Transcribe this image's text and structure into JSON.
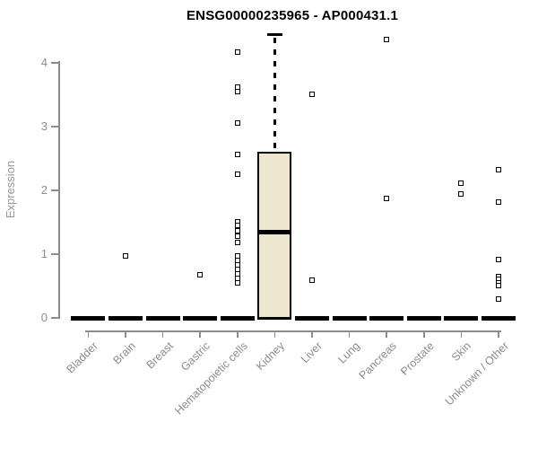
{
  "chart_data": {
    "type": "boxplot",
    "title": "ENSG00000235965 - AP000431.1",
    "ylabel": "Expression",
    "xlabel": "",
    "yticks": [
      0,
      1,
      2,
      3,
      4
    ],
    "ylim": [
      0,
      4.5
    ],
    "grid": false,
    "legend": "none",
    "colors": {
      "box_fill": "#ece7cd",
      "box_border": "#000000",
      "median": "#000000",
      "outlier": "#000000",
      "axis": "#8c8c8c",
      "tick_text": "#8c8c8c",
      "title_text": "#000000",
      "background": "#ffffff"
    },
    "categories": [
      "Bladder",
      "Brain",
      "Breast",
      "Gastric",
      "Hematopoietic cells",
      "Kidney",
      "Liver",
      "Lung",
      "Pancreas",
      "Prostate",
      "Skin",
      "Unknown / Other"
    ],
    "boxes": [
      {
        "category": "Bladder",
        "median": 0,
        "q1": 0,
        "q3": 0,
        "whisker_low": 0,
        "whisker_high": 0,
        "outliers": []
      },
      {
        "category": "Brain",
        "median": 0,
        "q1": 0,
        "q3": 0,
        "whisker_low": 0,
        "whisker_high": 0,
        "outliers": [
          0.97
        ]
      },
      {
        "category": "Breast",
        "median": 0,
        "q1": 0,
        "q3": 0,
        "whisker_low": 0,
        "whisker_high": 0,
        "outliers": []
      },
      {
        "category": "Gastric",
        "median": 0,
        "q1": 0,
        "q3": 0,
        "whisker_low": 0,
        "whisker_high": 0,
        "outliers": [
          0.67
        ]
      },
      {
        "category": "Hematopoietic cells",
        "median": 0,
        "q1": 0,
        "q3": 0,
        "whisker_low": 0,
        "whisker_high": 0,
        "outliers": [
          4.17,
          3.62,
          3.55,
          3.06,
          2.56,
          2.25,
          1.51,
          1.45,
          1.36,
          1.28,
          1.19,
          0.97,
          0.9,
          0.83,
          0.76,
          0.69,
          0.62,
          0.55
        ]
      },
      {
        "category": "Kidney",
        "median": 1.34,
        "q1": 0,
        "q3": 2.6,
        "whisker_low": 0,
        "whisker_high": 4.44,
        "outliers": []
      },
      {
        "category": "Liver",
        "median": 0,
        "q1": 0,
        "q3": 0,
        "whisker_low": 0,
        "whisker_high": 0,
        "outliers": [
          3.51,
          0.59
        ]
      },
      {
        "category": "Lung",
        "median": 0,
        "q1": 0,
        "q3": 0,
        "whisker_low": 0,
        "whisker_high": 0,
        "outliers": []
      },
      {
        "category": "Pancreas",
        "median": 0,
        "q1": 0,
        "q3": 0,
        "whisker_low": 0,
        "whisker_high": 0,
        "outliers": [
          4.36,
          1.87
        ]
      },
      {
        "category": "Prostate",
        "median": 0,
        "q1": 0,
        "q3": 0,
        "whisker_low": 0,
        "whisker_high": 0,
        "outliers": []
      },
      {
        "category": "Skin",
        "median": 0,
        "q1": 0,
        "q3": 0,
        "whisker_low": 0,
        "whisker_high": 0,
        "outliers": [
          2.11,
          1.94
        ]
      },
      {
        "category": "Unknown / Other",
        "median": 0,
        "q1": 0,
        "q3": 0,
        "whisker_low": 0,
        "whisker_high": 0,
        "outliers": [
          2.33,
          1.81,
          0.92,
          0.65,
          0.6,
          0.55,
          0.51,
          0.29
        ]
      }
    ]
  }
}
